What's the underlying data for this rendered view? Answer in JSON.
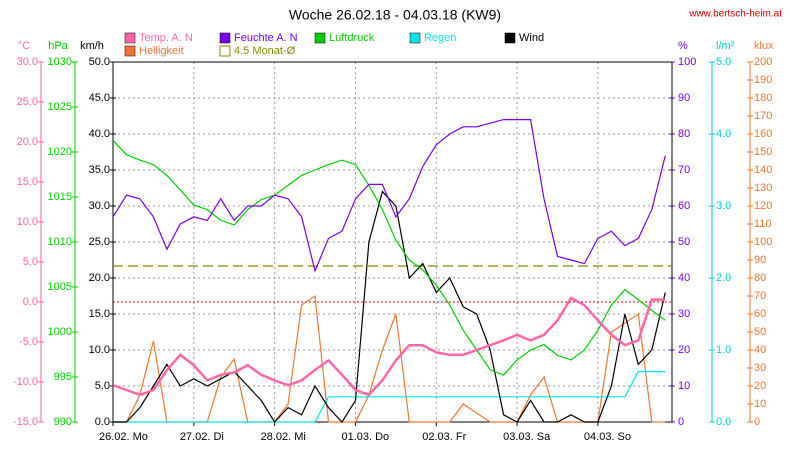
{
  "chart_data": {
    "type": "line",
    "title": "Woche 26.02.18 - 04.03.18 (KW9)",
    "source": "www.bertsch-heim.at",
    "xlim": [
      0,
      166
    ],
    "xticks": [
      {
        "value": 0,
        "label": "26.02. Mo"
      },
      {
        "value": 24,
        "label": "27.02. Di"
      },
      {
        "value": 48,
        "label": "28.02. Mi"
      },
      {
        "value": 72,
        "label": "01.03. Do"
      },
      {
        "value": 96,
        "label": "02.03. Fr"
      },
      {
        "value": 120,
        "label": "03.03. Sa"
      },
      {
        "value": 144,
        "label": "04.03. So"
      }
    ],
    "grid": true,
    "axes": [
      {
        "label": "°C",
        "color": "#ff66aa",
        "lim": [
          -15,
          30
        ],
        "ticks": [
          {
            "value": -15,
            "label": "-15.0"
          },
          {
            "value": -10,
            "label": "-10.0"
          },
          {
            "value": -5,
            "label": "-5.0"
          },
          {
            "value": 0,
            "label": "0.0"
          },
          {
            "value": 5,
            "label": "5.0"
          },
          {
            "value": 10,
            "label": "10.0"
          },
          {
            "value": 15,
            "label": "15.0"
          },
          {
            "value": 20,
            "label": "20.0"
          },
          {
            "value": 25,
            "label": "25.0"
          },
          {
            "value": 30,
            "label": "30.0"
          }
        ]
      },
      {
        "label": "hPa",
        "color": "#00cc00",
        "lim": [
          990,
          1030
        ],
        "ticks": [
          990,
          995,
          1000,
          1005,
          1010,
          1015,
          1020,
          1025,
          1030
        ]
      },
      {
        "label": "km/h",
        "color": "#000000",
        "lim": [
          0,
          50
        ],
        "ticks": [
          {
            "value": 0,
            "label": "0.0"
          },
          {
            "value": 5,
            "label": "5.0"
          },
          {
            "value": 10,
            "label": "10.0"
          },
          {
            "value": 15,
            "label": "15.0"
          },
          {
            "value": 20,
            "label": "20.0"
          },
          {
            "value": 25,
            "label": "25.0"
          },
          {
            "value": 30,
            "label": "30.0"
          },
          {
            "value": 35,
            "label": "35.0"
          },
          {
            "value": 40,
            "label": "40.0"
          },
          {
            "value": 45,
            "label": "45.0"
          },
          {
            "value": 50,
            "label": "50.0"
          }
        ]
      },
      {
        "label": "%",
        "color": "#7a00e6",
        "lim": [
          0,
          100
        ],
        "ticks": [
          0,
          10,
          20,
          30,
          40,
          50,
          60,
          70,
          80,
          90,
          100
        ]
      },
      {
        "label": "l/m²",
        "color": "#00cccc",
        "lim": [
          0,
          5
        ],
        "ticks": [
          {
            "value": 0,
            "label": "0.0"
          },
          {
            "value": 1,
            "label": "1.0"
          },
          {
            "value": 2,
            "label": "2.0"
          },
          {
            "value": 3,
            "label": "3.0"
          },
          {
            "value": 4,
            "label": "4.0"
          },
          {
            "value": 5,
            "label": "5.0"
          }
        ]
      },
      {
        "label": "klux",
        "color": "#ee7733",
        "lim": [
          0,
          200
        ],
        "ticks": [
          0,
          10,
          20,
          30,
          40,
          50,
          60,
          70,
          80,
          90,
          100,
          110,
          120,
          130,
          140,
          150,
          160,
          170,
          180,
          190,
          200
        ]
      }
    ],
    "x": [
      0,
      4,
      8,
      12,
      16,
      20,
      24,
      28,
      32,
      36,
      40,
      44,
      48,
      52,
      56,
      60,
      64,
      68,
      72,
      76,
      80,
      84,
      88,
      92,
      96,
      100,
      104,
      108,
      112,
      116,
      120,
      124,
      128,
      132,
      136,
      140,
      144,
      148,
      152,
      156,
      160,
      164
    ],
    "series": [
      {
        "name": "Temp. A. N",
        "color": "#ff66aa",
        "axis": 0,
        "values": [
          -10.4,
          -11,
          -11.6,
          -11,
          -8.5,
          -6.6,
          -7.9,
          -9.8,
          -9.1,
          -8.8,
          -7.9,
          -9.1,
          -9.8,
          -10.4,
          -9.8,
          -8.5,
          -7.3,
          -9.1,
          -11,
          -11.6,
          -9.8,
          -7.3,
          -5.4,
          -5.4,
          -6.3,
          -6.6,
          -6.6,
          -6,
          -5.4,
          -4.8,
          -4.1,
          -4.8,
          -4.1,
          -2.3,
          0.5,
          -0.4,
          -2.3,
          -4.1,
          -5.4,
          -4.8,
          0.3,
          0.3
        ]
      },
      {
        "name": "Feuchte A. N",
        "color": "#7a00e6",
        "axis": 3,
        "values": [
          57,
          63,
          62,
          57,
          48,
          55,
          57,
          56,
          62,
          56,
          60,
          60,
          63,
          62,
          57,
          42,
          51,
          53,
          62,
          66,
          66,
          57,
          62,
          71,
          77,
          80,
          82,
          82,
          83,
          84,
          84,
          84,
          62,
          46,
          45,
          44,
          51,
          53,
          49,
          51,
          59,
          74
        ]
      },
      {
        "name": "Luftdruck",
        "color": "#00cc00",
        "axis": 1,
        "values": [
          1021.3,
          1019.7,
          1019.1,
          1018.6,
          1017.4,
          1015.8,
          1014.1,
          1013.6,
          1012.4,
          1011.9,
          1013.6,
          1014.7,
          1015.2,
          1016.3,
          1017.4,
          1018,
          1018.6,
          1019.1,
          1018.6,
          1016.3,
          1013.6,
          1010.2,
          1008,
          1006.9,
          1005.2,
          1003,
          1000.2,
          998,
          995.8,
          995.2,
          996.9,
          998,
          998.6,
          997.4,
          996.9,
          998,
          1000.2,
          1003,
          1004.7,
          1003.6,
          1002.4,
          1001.3
        ]
      },
      {
        "name": "Regen",
        "color": "#00e5e5",
        "axis": 4,
        "values": [
          0,
          0,
          0,
          0,
          0,
          0,
          0,
          0,
          0,
          0,
          0,
          0,
          0,
          0,
          0,
          0,
          0.35,
          0.35,
          0.35,
          0.35,
          0.35,
          0.35,
          0.35,
          0.35,
          0.35,
          0.35,
          0.35,
          0.35,
          0.35,
          0.35,
          0.35,
          0.35,
          0.35,
          0.35,
          0.35,
          0.35,
          0.35,
          0.35,
          0.35,
          0.7,
          0.7,
          0.7
        ]
      },
      {
        "name": "Wind",
        "color": "#000000",
        "axis": 2,
        "values": [
          0,
          0,
          2,
          5,
          8,
          5,
          6,
          5,
          6,
          7,
          5,
          3,
          0,
          2,
          1,
          5,
          2,
          0,
          3,
          25,
          32,
          30,
          20,
          22,
          18,
          20,
          16,
          15,
          10,
          1,
          0,
          3,
          0,
          0,
          1,
          0,
          0,
          5,
          15,
          8,
          10,
          18
        ]
      },
      {
        "name": "Helligkeit",
        "color": "#ee7733",
        "axis": 5,
        "values": [
          0,
          0,
          15,
          45,
          0,
          0,
          0,
          0,
          25,
          35,
          0,
          0,
          0,
          10,
          65,
          70,
          0,
          0,
          0,
          15,
          40,
          60,
          0,
          0,
          0,
          0,
          10,
          5,
          0,
          0,
          0,
          15,
          25,
          0,
          0,
          0,
          0,
          50,
          55,
          60,
          0,
          0
        ]
      }
    ],
    "reference": {
      "name": "4.5 Monat-Ø",
      "value": 4.5,
      "axis": 0,
      "color": "#888800"
    },
    "hlines": [
      {
        "value": 0,
        "axis": 0,
        "color": "#dd0000"
      }
    ]
  }
}
